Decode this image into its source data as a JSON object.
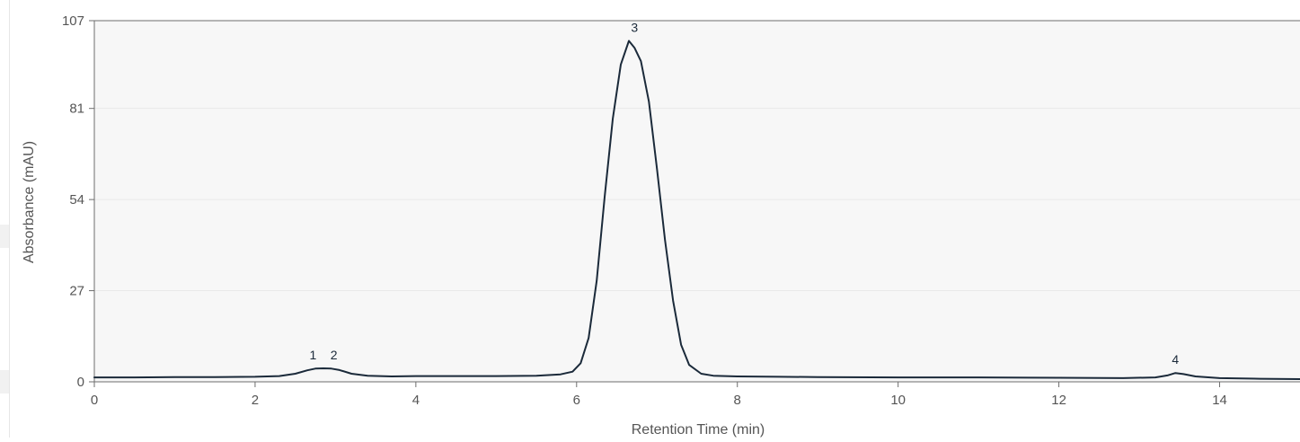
{
  "chart_data": {
    "type": "line",
    "title": "",
    "xlabel": "Retention Time (min)",
    "ylabel": "Absorbance (mAU)",
    "xlim": [
      0,
      15
    ],
    "ylim": [
      0,
      107
    ],
    "x_ticks": [
      0,
      2,
      4,
      6,
      8,
      10,
      12,
      14
    ],
    "y_ticks": [
      0,
      27,
      54,
      81,
      107
    ],
    "grid": "horizontal",
    "legend": "none",
    "series": [
      {
        "x": [
          0.0,
          0.5,
          1.0,
          1.5,
          2.0,
          2.3,
          2.5,
          2.65,
          2.75,
          2.85,
          2.95,
          3.05,
          3.2,
          3.4,
          3.7,
          4.0,
          4.5,
          5.0,
          5.5,
          5.8,
          5.95,
          6.05,
          6.15,
          6.25,
          6.35,
          6.45,
          6.55,
          6.65,
          6.72,
          6.8,
          6.9,
          7.0,
          7.1,
          7.2,
          7.3,
          7.4,
          7.55,
          7.7,
          8.0,
          8.5,
          9.0,
          10.0,
          11.0,
          12.0,
          12.8,
          13.2,
          13.35,
          13.45,
          13.55,
          13.7,
          14.0,
          14.5,
          15.0
        ],
        "y": [
          1.3,
          1.3,
          1.4,
          1.4,
          1.5,
          1.7,
          2.4,
          3.4,
          3.9,
          4.0,
          3.9,
          3.5,
          2.4,
          1.8,
          1.6,
          1.7,
          1.7,
          1.7,
          1.8,
          2.2,
          3.0,
          5.5,
          13.0,
          30.0,
          55.0,
          78.0,
          94.0,
          101.0,
          99.0,
          95.0,
          83.0,
          63.0,
          42.0,
          24.0,
          11.0,
          5.0,
          2.4,
          1.8,
          1.6,
          1.5,
          1.4,
          1.3,
          1.3,
          1.2,
          1.1,
          1.3,
          1.9,
          2.6,
          2.3,
          1.6,
          1.1,
          0.9,
          0.8
        ],
        "color": "#1b2a3a"
      }
    ],
    "annotations": [
      {
        "label": "1",
        "x": 2.72,
        "y": 4.0
      },
      {
        "label": "2",
        "x": 2.98,
        "y": 4.0
      },
      {
        "label": "3",
        "x": 6.72,
        "y": 101.0
      },
      {
        "label": "4",
        "x": 13.45,
        "y": 2.6
      }
    ],
    "colors": {
      "plot_background": "#f7f7f7",
      "grid": "#e9e9e9",
      "axis": "#6d6d6d",
      "text": "#555555",
      "annotation": "#1b2a3a"
    }
  }
}
